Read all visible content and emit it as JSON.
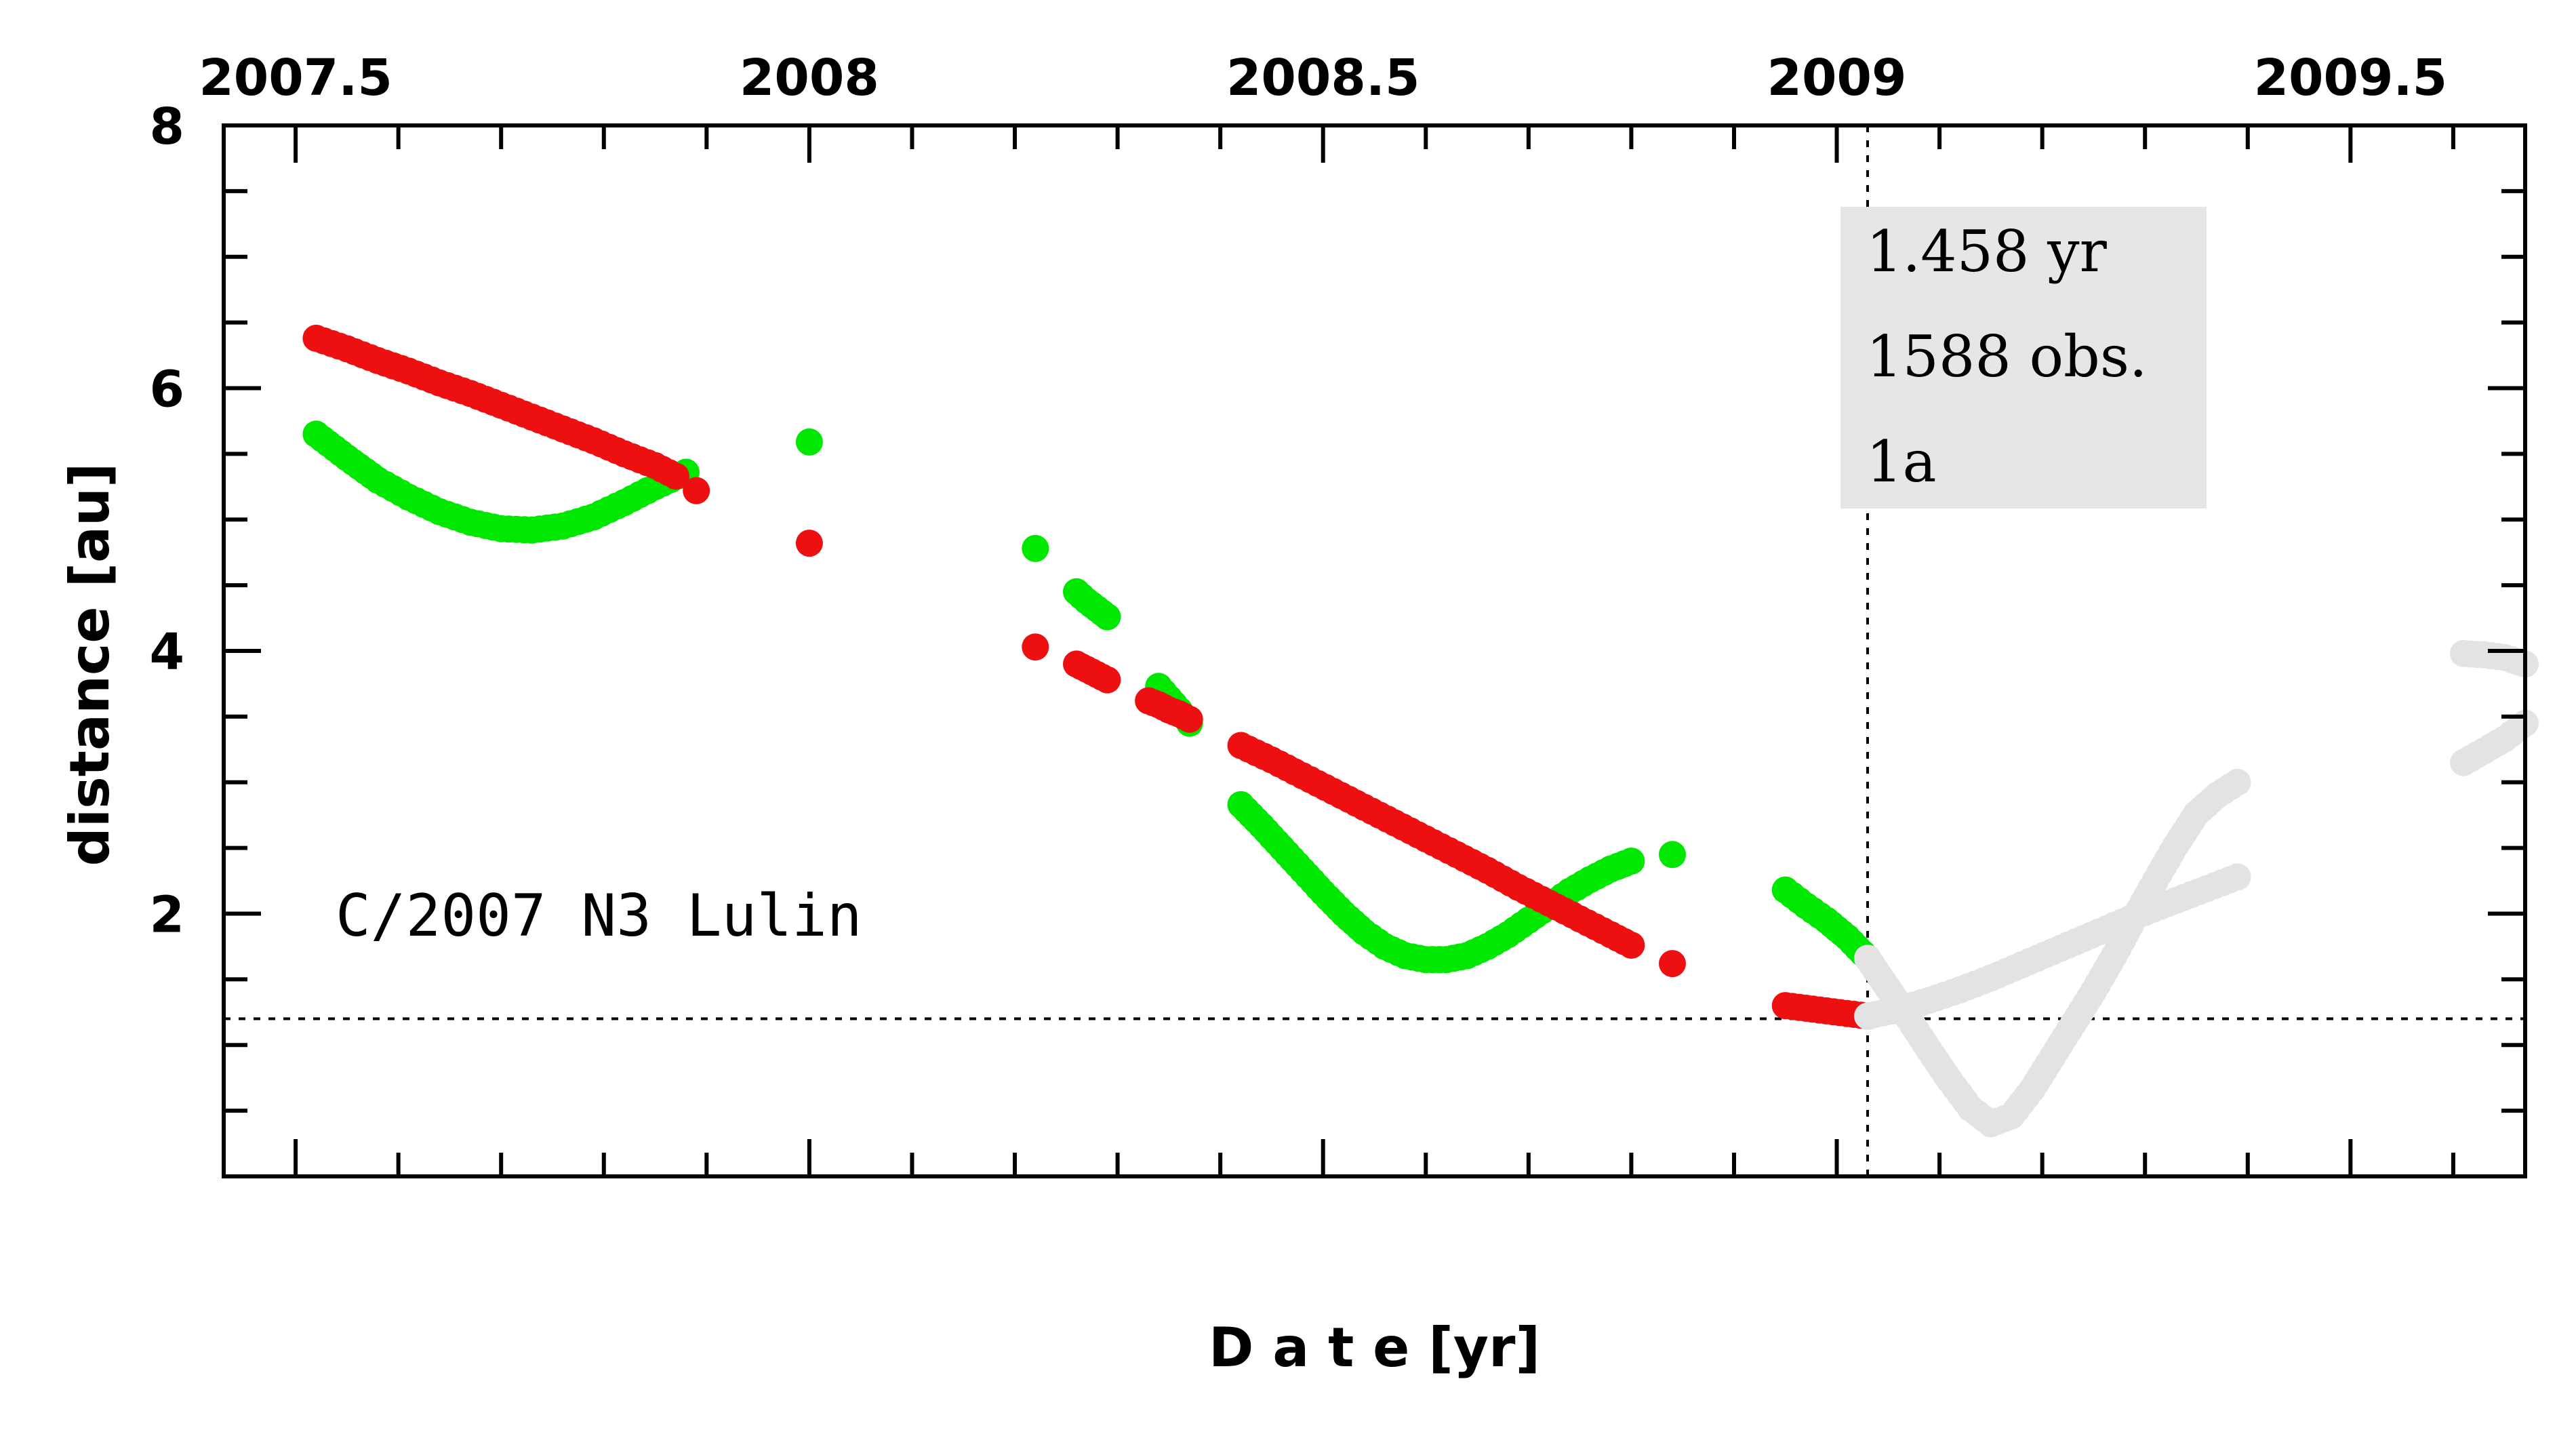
{
  "chart_data": {
    "type": "scatter",
    "xlabel": "D a t e [yr]",
    "ylabel": "distance [au]",
    "xlim": [
      2007.43,
      2009.67
    ],
    "ylim": [
      0,
      8
    ],
    "x_ticks": [
      2007.5,
      2008,
      2008.5,
      2009,
      2009.5
    ],
    "x_tick_labels": [
      "2007.5",
      "2008",
      "2008.5",
      "2009",
      "2009.5"
    ],
    "y_ticks": [
      2,
      4,
      6,
      8
    ],
    "y_tick_labels": [
      "2",
      "4",
      "6",
      "8"
    ],
    "object_label": "C/2007 N3 Lulin",
    "stats": {
      "arc": "1.458 yr",
      "observations": "1588 obs.",
      "code": "1a"
    },
    "ref_lines": {
      "vertical_x": 2009.03,
      "horizontal_y": 1.2
    },
    "series": [
      {
        "color": "#00e800",
        "segments": [
          [
            [
              2007.52,
              5.65
            ],
            [
              2007.55,
              5.47
            ],
            [
              2007.58,
              5.3
            ],
            [
              2007.61,
              5.17
            ],
            [
              2007.64,
              5.06
            ],
            [
              2007.67,
              4.98
            ],
            [
              2007.7,
              4.93
            ],
            [
              2007.73,
              4.92
            ],
            [
              2007.76,
              4.95
            ],
            [
              2007.79,
              5.02
            ],
            [
              2007.82,
              5.13
            ],
            [
              2007.85,
              5.25
            ],
            [
              2007.88,
              5.36
            ]
          ],
          [
            [
              2008.0,
              5.59
            ]
          ],
          [
            [
              2008.22,
              4.78
            ]
          ],
          [
            [
              2008.26,
              4.45
            ],
            [
              2008.27,
              4.38
            ],
            [
              2008.28,
              4.32
            ],
            [
              2008.29,
              4.26
            ]
          ],
          [
            [
              2008.34,
              3.73
            ],
            [
              2008.35,
              3.64
            ],
            [
              2008.36,
              3.55
            ],
            [
              2008.37,
              3.45
            ]
          ],
          [
            [
              2008.42,
              2.83
            ],
            [
              2008.44,
              2.67
            ],
            [
              2008.46,
              2.5
            ],
            [
              2008.48,
              2.33
            ],
            [
              2008.5,
              2.16
            ],
            [
              2008.52,
              2.0
            ],
            [
              2008.54,
              1.86
            ],
            [
              2008.56,
              1.75
            ],
            [
              2008.58,
              1.68
            ],
            [
              2008.6,
              1.65
            ],
            [
              2008.62,
              1.65
            ],
            [
              2008.64,
              1.68
            ],
            [
              2008.66,
              1.75
            ],
            [
              2008.68,
              1.84
            ],
            [
              2008.7,
              1.95
            ],
            [
              2008.72,
              2.06
            ],
            [
              2008.74,
              2.17
            ],
            [
              2008.76,
              2.26
            ],
            [
              2008.78,
              2.34
            ],
            [
              2008.8,
              2.4
            ]
          ],
          [
            [
              2008.84,
              2.45
            ]
          ],
          [
            [
              2008.95,
              2.18
            ],
            [
              2008.97,
              2.06
            ],
            [
              2008.99,
              1.95
            ],
            [
              2009.01,
              1.82
            ],
            [
              2009.03,
              1.66
            ]
          ]
        ]
      },
      {
        "color": "#ee1010",
        "segments": [
          [
            [
              2007.52,
              6.38
            ],
            [
              2007.55,
              6.3
            ],
            [
              2007.58,
              6.21
            ],
            [
              2007.61,
              6.13
            ],
            [
              2007.64,
              6.04
            ],
            [
              2007.67,
              5.96
            ],
            [
              2007.7,
              5.87
            ],
            [
              2007.73,
              5.78
            ],
            [
              2007.76,
              5.69
            ],
            [
              2007.79,
              5.6
            ],
            [
              2007.82,
              5.5
            ],
            [
              2007.85,
              5.41
            ],
            [
              2007.87,
              5.33
            ]
          ],
          [
            [
              2007.89,
              5.22
            ]
          ],
          [
            [
              2008.0,
              4.82
            ]
          ],
          [
            [
              2008.22,
              4.03
            ]
          ],
          [
            [
              2008.26,
              3.9
            ],
            [
              2008.27,
              3.86
            ],
            [
              2008.28,
              3.82
            ],
            [
              2008.29,
              3.78
            ]
          ],
          [
            [
              2008.33,
              3.62
            ],
            [
              2008.34,
              3.59
            ],
            [
              2008.35,
              3.55
            ],
            [
              2008.36,
              3.52
            ],
            [
              2008.37,
              3.48
            ]
          ],
          [
            [
              2008.42,
              3.28
            ],
            [
              2008.45,
              3.17
            ],
            [
              2008.48,
              3.05
            ],
            [
              2008.51,
              2.93
            ],
            [
              2008.54,
              2.81
            ],
            [
              2008.57,
              2.69
            ],
            [
              2008.6,
              2.57
            ],
            [
              2008.63,
              2.45
            ],
            [
              2008.66,
              2.33
            ],
            [
              2008.69,
              2.2
            ],
            [
              2008.72,
              2.08
            ],
            [
              2008.75,
              1.96
            ],
            [
              2008.78,
              1.84
            ],
            [
              2008.8,
              1.76
            ]
          ],
          [
            [
              2008.84,
              1.62
            ]
          ],
          [
            [
              2008.95,
              1.3
            ],
            [
              2008.97,
              1.28
            ],
            [
              2008.99,
              1.26
            ],
            [
              2009.01,
              1.24
            ],
            [
              2009.03,
              1.22
            ]
          ]
        ]
      },
      {
        "color": "#e3e3e3",
        "segments": [
          [
            [
              2009.03,
              1.66
            ],
            [
              2009.05,
              1.43
            ],
            [
              2009.07,
              1.2
            ],
            [
              2009.09,
              0.96
            ],
            [
              2009.11,
              0.73
            ],
            [
              2009.13,
              0.52
            ],
            [
              2009.15,
              0.4
            ],
            [
              2009.17,
              0.46
            ],
            [
              2009.19,
              0.66
            ],
            [
              2009.21,
              0.91
            ],
            [
              2009.23,
              1.16
            ],
            [
              2009.25,
              1.41
            ],
            [
              2009.27,
              1.68
            ],
            [
              2009.29,
              1.97
            ],
            [
              2009.31,
              2.25
            ],
            [
              2009.33,
              2.52
            ],
            [
              2009.35,
              2.76
            ],
            [
              2009.37,
              2.9
            ],
            [
              2009.39,
              3.0
            ]
          ],
          [
            [
              2009.03,
              1.22
            ],
            [
              2009.06,
              1.27
            ],
            [
              2009.09,
              1.34
            ],
            [
              2009.12,
              1.42
            ],
            [
              2009.15,
              1.51
            ],
            [
              2009.18,
              1.61
            ],
            [
              2009.21,
              1.71
            ],
            [
              2009.24,
              1.81
            ],
            [
              2009.27,
              1.91
            ],
            [
              2009.3,
              2.01
            ],
            [
              2009.33,
              2.1
            ],
            [
              2009.36,
              2.19
            ],
            [
              2009.39,
              2.28
            ]
          ],
          [
            [
              2009.61,
              3.98
            ],
            [
              2009.63,
              3.97
            ],
            [
              2009.65,
              3.95
            ],
            [
              2009.67,
              3.9
            ]
          ],
          [
            [
              2009.61,
              3.15
            ],
            [
              2009.63,
              3.24
            ],
            [
              2009.65,
              3.33
            ],
            [
              2009.67,
              3.45
            ]
          ]
        ]
      }
    ]
  }
}
